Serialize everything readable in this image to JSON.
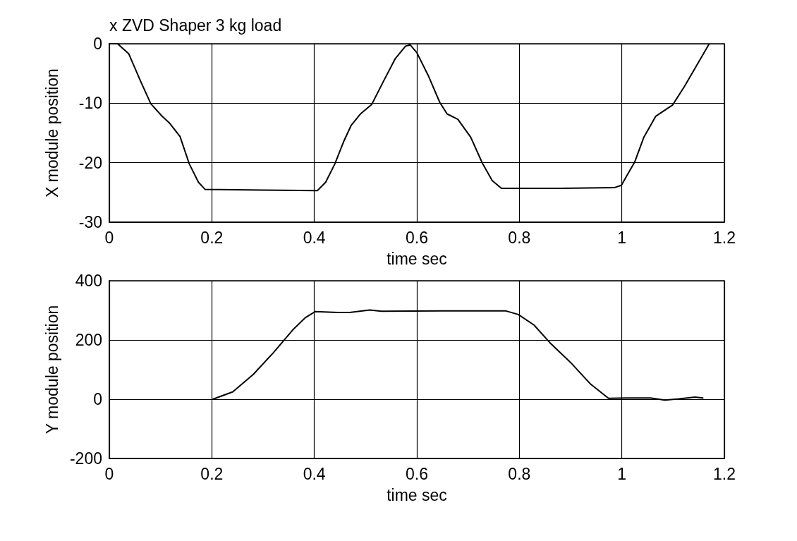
{
  "chart_data": [
    {
      "type": "line",
      "title": "x ZVD Shaper 3 kg load",
      "xlabel": "time sec",
      "ylabel": "X module position",
      "x": [
        0,
        0.016,
        0.038,
        0.061,
        0.081,
        0.102,
        0.117,
        0.138,
        0.156,
        0.174,
        0.187,
        0.3,
        0.406,
        0.422,
        0.44,
        0.458,
        0.472,
        0.49,
        0.512,
        0.535,
        0.558,
        0.578,
        0.587,
        0.6,
        0.622,
        0.645,
        0.659,
        0.68,
        0.705,
        0.728,
        0.747,
        0.765,
        0.88,
        0.985,
        0.999,
        1.025,
        1.043,
        1.066,
        1.099,
        1.122,
        1.145,
        1.17
      ],
      "series": [
        {
          "color": "#000000",
          "values": [
            0,
            0,
            -1.7,
            -6.3,
            -10.1,
            -12.1,
            -13.3,
            -15.6,
            -20.2,
            -23.3,
            -24.5,
            -24.6,
            -24.7,
            -23.3,
            -20.2,
            -16.3,
            -13.7,
            -11.8,
            -10.2,
            -6.3,
            -2.5,
            -0.4,
            -0.2,
            -1.5,
            -5.3,
            -9.9,
            -11.8,
            -12.7,
            -15.7,
            -20.1,
            -23,
            -24.3,
            -24.3,
            -24.2,
            -23.8,
            -19.9,
            -15.7,
            -12.2,
            -10.3,
            -7.2,
            -3.8,
            -0.1
          ]
        }
      ],
      "xlim": [
        0,
        1.2
      ],
      "xticks": [
        0,
        0.2,
        0.4,
        0.6,
        0.8,
        1,
        1.2
      ],
      "ylim": [
        -30,
        0
      ],
      "yticks": [
        -30,
        -20,
        -10,
        0
      ],
      "grid": true,
      "marker": "none",
      "line_style": "solid"
    },
    {
      "type": "line",
      "xlabel": "time sec",
      "ylabel": "Y module position",
      "x": [
        0.202,
        0.241,
        0.281,
        0.32,
        0.359,
        0.383,
        0.402,
        0.445,
        0.469,
        0.508,
        0.531,
        0.65,
        0.774,
        0.798,
        0.829,
        0.86,
        0.9,
        0.939,
        0.974,
        1.009,
        1.056,
        1.084,
        1.111,
        1.143,
        1.158
      ],
      "series": [
        {
          "color": "#000000",
          "values": [
            0,
            25,
            84,
            157,
            236,
            276,
            296,
            293,
            293,
            301,
            297,
            298,
            298,
            286,
            250,
            190,
            124,
            51,
            3,
            4,
            4,
            -3,
            1,
            7,
            4
          ]
        }
      ],
      "xlim": [
        0,
        1.2
      ],
      "xticks": [
        0,
        0.2,
        0.4,
        0.6,
        0.8,
        1,
        1.2
      ],
      "ylim": [
        -200,
        400
      ],
      "yticks": [
        -200,
        0,
        200,
        400
      ],
      "grid": true,
      "marker": "none",
      "line_style": "solid"
    }
  ]
}
